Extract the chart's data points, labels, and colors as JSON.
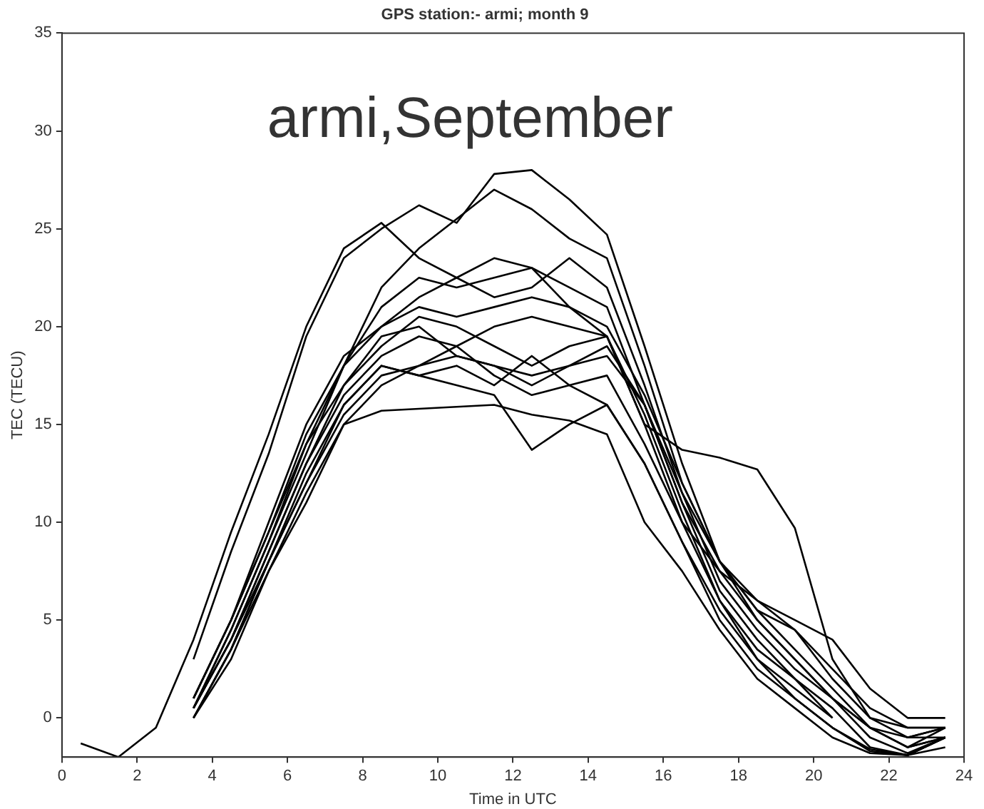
{
  "chart_data": {
    "type": "line",
    "title": "GPS station:- armi; month 9",
    "xlabel": "Time in UTC",
    "ylabel": "TEC (TECU)",
    "annotations": [
      "armi,September"
    ],
    "x": [
      0.5,
      1.5,
      2.5,
      3.5,
      4.5,
      5.5,
      6.5,
      7.5,
      8.5,
      9.5,
      10.5,
      11.5,
      12.5,
      13.5,
      14.5,
      15.5,
      16.5,
      17.5,
      18.5,
      19.5,
      20.5,
      21.5,
      22.5,
      23.5
    ],
    "xlim": [
      0,
      24
    ],
    "xticks": [
      0,
      2,
      4,
      6,
      8,
      10,
      12,
      14,
      16,
      18,
      20,
      22,
      24
    ],
    "ylim": [
      -2,
      35
    ],
    "yticks": [
      0,
      5,
      10,
      15,
      20,
      25,
      30,
      35
    ],
    "grid": false,
    "legend": false,
    "marker": "none",
    "line_style": "solid",
    "series": [
      {
        "color": "#000000",
        "values": [
          -1.3,
          -2,
          -0.5,
          4,
          9.5,
          14.5,
          20,
          24,
          25.3,
          23.5,
          22.5,
          23.5,
          23,
          21,
          19.5,
          15,
          13.7,
          13.3,
          12.7,
          9.7,
          3,
          0,
          -0.5,
          -0.5
        ]
      },
      {
        "color": "#000000",
        "values": [
          null,
          null,
          null,
          3,
          8.5,
          13.5,
          19.5,
          23.5,
          25,
          26.2,
          25.3,
          27.8,
          28,
          26.5,
          24.7,
          19,
          13,
          8,
          5,
          3,
          1,
          -1,
          -1.8,
          -1
        ]
      },
      {
        "color": "#000000",
        "values": [
          null,
          null,
          null,
          0.5,
          4.5,
          9,
          14,
          18,
          22,
          24,
          25.5,
          27,
          26,
          24.5,
          23.5,
          18,
          12,
          8,
          5.5,
          3.5,
          1.5,
          -0.5,
          -1.5,
          -0.5
        ]
      },
      {
        "color": "#000000",
        "values": [
          null,
          null,
          null,
          0.5,
          4,
          8,
          12,
          15.5,
          17.5,
          18,
          18.5,
          18,
          17.5,
          18,
          18.5,
          16,
          11,
          6.5,
          4,
          2,
          0.5,
          -1.5,
          -1.9,
          -1
        ]
      },
      {
        "color": "#000000",
        "values": [
          null,
          null,
          null,
          1,
          5,
          9.5,
          14,
          17,
          19,
          20.5,
          20,
          19,
          18,
          19,
          19.5,
          15,
          10,
          6,
          3.5,
          2,
          0,
          null,
          -1.5,
          -1
        ]
      },
      {
        "color": "#000000",
        "values": [
          null,
          null,
          null,
          0,
          3.5,
          7.5,
          11.5,
          15,
          15.7,
          15.8,
          15.9,
          16,
          15.5,
          15.2,
          14.5,
          10,
          7.5,
          4.5,
          2,
          0.5,
          -1,
          -1.8,
          -1.9,
          -1
        ]
      },
      {
        "color": "#000000",
        "values": [
          null,
          null,
          null,
          0.5,
          4.5,
          9,
          13.5,
          18,
          20,
          21.5,
          22.5,
          21.5,
          22,
          23.5,
          22,
          17,
          11.5,
          7,
          4.5,
          2.5,
          1,
          -0.5,
          -1,
          -0.5
        ]
      },
      {
        "color": "#000000",
        "values": [
          null,
          null,
          null,
          1,
          5,
          9.5,
          14.5,
          18,
          21,
          22.5,
          22,
          22.5,
          23,
          22,
          21,
          16,
          11,
          7.5,
          5,
          3,
          1,
          -0.5,
          -1.5,
          -1
        ]
      },
      {
        "color": "#000000",
        "values": [
          null,
          null,
          null,
          0,
          3.5,
          8,
          12,
          16,
          18,
          17.5,
          17,
          16.5,
          13.7,
          15,
          16,
          13,
          9,
          5,
          2.5,
          1,
          -0.5,
          -1.7,
          -1.9,
          -1.5
        ]
      },
      {
        "color": "#000000",
        "values": [
          null,
          null,
          null,
          0.5,
          4,
          8.5,
          13,
          16.5,
          18.5,
          19.5,
          19,
          20,
          20.5,
          20,
          19.5,
          15.5,
          10.5,
          6,
          3,
          1.5,
          0,
          null,
          -1,
          -0.5
        ]
      },
      {
        "color": "#000000",
        "values": [
          null,
          null,
          null,
          0,
          3,
          7.5,
          11,
          15,
          17,
          18,
          19,
          17.5,
          16.5,
          17,
          17.5,
          14,
          10,
          7.5,
          6,
          4.5,
          2,
          0,
          -1,
          -1
        ]
      },
      {
        "color": "#000000",
        "values": [
          null,
          null,
          null,
          1,
          5,
          10,
          15,
          18.5,
          20,
          21,
          20.5,
          21,
          21.5,
          21,
          20,
          16.5,
          12,
          8,
          5.5,
          4.5,
          2.5,
          0.5,
          -0.5,
          -0.5
        ]
      },
      {
        "color": "#000000",
        "values": [
          null,
          null,
          null,
          0.5,
          4,
          8.5,
          13,
          17,
          19.5,
          20,
          18.5,
          18,
          17,
          18,
          19,
          16,
          11.5,
          8,
          6,
          5,
          4,
          1.5,
          0,
          0
        ]
      },
      {
        "color": "#000000",
        "values": [
          null,
          null,
          null,
          0,
          3.5,
          8,
          12.5,
          16,
          18,
          17.5,
          18,
          17,
          18.5,
          17,
          16,
          13,
          9,
          5.5,
          3,
          1,
          -0.5,
          -1.6,
          -1.9,
          -1
        ]
      }
    ]
  }
}
